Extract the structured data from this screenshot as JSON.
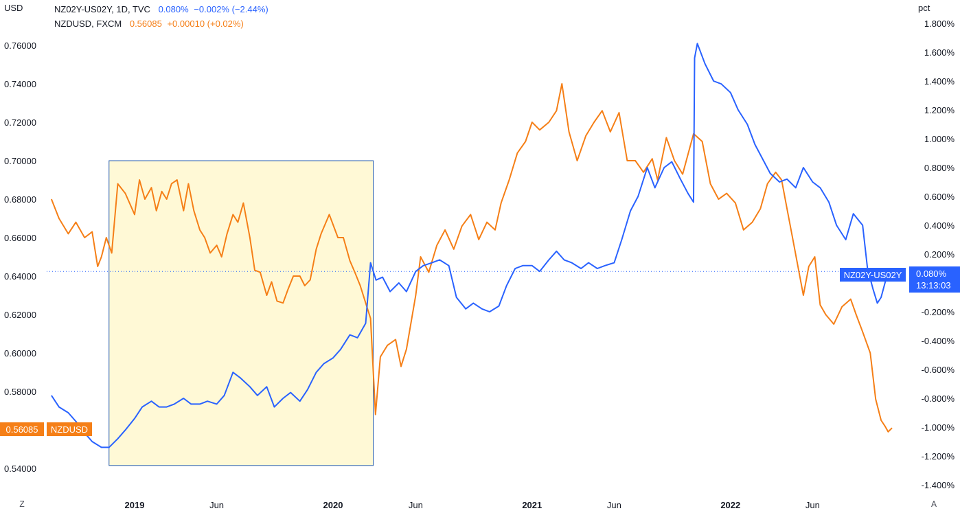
{
  "units": {
    "left": "USD",
    "right": "pct"
  },
  "legend": {
    "spread": {
      "symbol": "NZ02Y-US02Y, 1D, TVC",
      "value": "0.080%",
      "change": "−0.002% (−2.44%)"
    },
    "nzdusd": {
      "symbol": "NZDUSD, FXCM",
      "value": "0.56085",
      "change": "+0.00010 (+0.02%)"
    }
  },
  "badges": {
    "nzdusd_price": "0.56085",
    "nzdusd_name": "NZDUSD",
    "spread_name": "NZ02Y-US02Y",
    "spread_value": "0.080%",
    "countdown": "13:13:03"
  },
  "controls": {
    "left_corner": "Z",
    "right_corner": "A"
  },
  "colors": {
    "nzdusd": "#f57f17",
    "spread": "#2962ff",
    "highlight_fill": "#fff9d6",
    "highlight_border": "#2a5fb0"
  },
  "chart_data": {
    "type": "line",
    "x_tick_labels": [
      "2019",
      "Jun",
      "2020",
      "Jun",
      "2021",
      "Jun",
      "2022",
      "Jun"
    ],
    "x_tick_dates": [
      "2019-01-01",
      "2019-06-01",
      "2020-01-01",
      "2020-06-01",
      "2021-01-01",
      "2021-06-01",
      "2022-01-01",
      "2022-06-01"
    ],
    "left_axis": {
      "label": "USD",
      "range": [
        0.54,
        0.76
      ],
      "ticks": [
        "0.54000",
        "0.56000",
        "0.58000",
        "0.60000",
        "0.62000",
        "0.64000",
        "0.66000",
        "0.68000",
        "0.70000",
        "0.72000",
        "0.74000",
        "0.76000"
      ]
    },
    "right_axis": {
      "label": "pct",
      "range": [
        -1.4,
        1.8
      ],
      "ticks": [
        "-1.400%",
        "-1.200%",
        "-1.000%",
        "-0.800%",
        "-0.600%",
        "-0.400%",
        "-0.200%",
        "0.200%",
        "0.400%",
        "0.600%",
        "0.800%",
        "1.000%",
        "1.200%",
        "1.400%",
        "1.600%",
        "1.800%"
      ]
    },
    "highlight": {
      "from": "2018-11-15",
      "to": "2020-03-15",
      "y_top": 0.7,
      "y_bottom": 0.5415
    },
    "reference_line": {
      "value": 0.08,
      "axis": "right"
    },
    "series": [
      {
        "name": "NZDUSD",
        "axis": "left",
        "points": [
          [
            "2018-08-01",
            0.68
          ],
          [
            "2018-08-15",
            0.67
          ],
          [
            "2018-09-01",
            0.662
          ],
          [
            "2018-09-15",
            0.668
          ],
          [
            "2018-10-01",
            0.66
          ],
          [
            "2018-10-15",
            0.663
          ],
          [
            "2018-10-25",
            0.645
          ],
          [
            "2018-11-01",
            0.65
          ],
          [
            "2018-11-10",
            0.66
          ],
          [
            "2018-11-20",
            0.652
          ],
          [
            "2018-12-01",
            0.688
          ],
          [
            "2018-12-15",
            0.683
          ],
          [
            "2019-01-01",
            0.672
          ],
          [
            "2019-01-10",
            0.69
          ],
          [
            "2019-01-20",
            0.68
          ],
          [
            "2019-02-01",
            0.686
          ],
          [
            "2019-02-10",
            0.674
          ],
          [
            "2019-02-20",
            0.684
          ],
          [
            "2019-03-01",
            0.68
          ],
          [
            "2019-03-10",
            0.688
          ],
          [
            "2019-03-20",
            0.69
          ],
          [
            "2019-04-01",
            0.674
          ],
          [
            "2019-04-10",
            0.688
          ],
          [
            "2019-04-20",
            0.674
          ],
          [
            "2019-05-01",
            0.664
          ],
          [
            "2019-05-10",
            0.66
          ],
          [
            "2019-05-20",
            0.652
          ],
          [
            "2019-06-01",
            0.656
          ],
          [
            "2019-06-10",
            0.65
          ],
          [
            "2019-06-20",
            0.662
          ],
          [
            "2019-07-01",
            0.672
          ],
          [
            "2019-07-10",
            0.668
          ],
          [
            "2019-07-20",
            0.678
          ],
          [
            "2019-08-01",
            0.66
          ],
          [
            "2019-08-10",
            0.643
          ],
          [
            "2019-08-20",
            0.642
          ],
          [
            "2019-09-01",
            0.63
          ],
          [
            "2019-09-10",
            0.637
          ],
          [
            "2019-09-20",
            0.627
          ],
          [
            "2019-10-01",
            0.626
          ],
          [
            "2019-10-10",
            0.633
          ],
          [
            "2019-10-20",
            0.64
          ],
          [
            "2019-11-01",
            0.64
          ],
          [
            "2019-11-10",
            0.635
          ],
          [
            "2019-11-20",
            0.638
          ],
          [
            "2019-12-01",
            0.654
          ],
          [
            "2019-12-10",
            0.662
          ],
          [
            "2019-12-25",
            0.672
          ],
          [
            "2020-01-10",
            0.66
          ],
          [
            "2020-01-20",
            0.66
          ],
          [
            "2020-02-01",
            0.648
          ],
          [
            "2020-02-10",
            0.642
          ],
          [
            "2020-02-20",
            0.635
          ],
          [
            "2020-03-01",
            0.626
          ],
          [
            "2020-03-10",
            0.618
          ],
          [
            "2020-03-19",
            0.568
          ],
          [
            "2020-03-28",
            0.598
          ],
          [
            "2020-04-10",
            0.604
          ],
          [
            "2020-04-25",
            0.607
          ],
          [
            "2020-05-05",
            0.593
          ],
          [
            "2020-05-15",
            0.602
          ],
          [
            "2020-06-01",
            0.63
          ],
          [
            "2020-06-10",
            0.65
          ],
          [
            "2020-06-25",
            0.642
          ],
          [
            "2020-07-10",
            0.656
          ],
          [
            "2020-07-25",
            0.664
          ],
          [
            "2020-08-10",
            0.654
          ],
          [
            "2020-08-25",
            0.666
          ],
          [
            "2020-09-10",
            0.672
          ],
          [
            "2020-09-25",
            0.659
          ],
          [
            "2020-10-10",
            0.668
          ],
          [
            "2020-10-25",
            0.664
          ],
          [
            "2020-11-05",
            0.678
          ],
          [
            "2020-11-20",
            0.69
          ],
          [
            "2020-12-05",
            0.704
          ],
          [
            "2020-12-20",
            0.71
          ],
          [
            "2021-01-01",
            0.72
          ],
          [
            "2021-01-15",
            0.716
          ],
          [
            "2021-02-01",
            0.72
          ],
          [
            "2021-02-15",
            0.726
          ],
          [
            "2021-02-25",
            0.74
          ],
          [
            "2021-03-10",
            0.715
          ],
          [
            "2021-03-25",
            0.7
          ],
          [
            "2021-04-10",
            0.713
          ],
          [
            "2021-04-25",
            0.72
          ],
          [
            "2021-05-10",
            0.726
          ],
          [
            "2021-05-25",
            0.715
          ],
          [
            "2021-06-10",
            0.725
          ],
          [
            "2021-06-25",
            0.7
          ],
          [
            "2021-07-10",
            0.7
          ],
          [
            "2021-07-25",
            0.694
          ],
          [
            "2021-08-10",
            0.701
          ],
          [
            "2021-08-20",
            0.69
          ],
          [
            "2021-09-05",
            0.712
          ],
          [
            "2021-09-20",
            0.7
          ],
          [
            "2021-10-05",
            0.693
          ],
          [
            "2021-10-25",
            0.714
          ],
          [
            "2021-11-10",
            0.71
          ],
          [
            "2021-11-25",
            0.688
          ],
          [
            "2021-12-10",
            0.68
          ],
          [
            "2021-12-25",
            0.683
          ],
          [
            "2022-01-10",
            0.678
          ],
          [
            "2022-01-25",
            0.664
          ],
          [
            "2022-02-10",
            0.668
          ],
          [
            "2022-02-25",
            0.675
          ],
          [
            "2022-03-10",
            0.688
          ],
          [
            "2022-03-25",
            0.694
          ],
          [
            "2022-04-05",
            0.69
          ],
          [
            "2022-04-15",
            0.675
          ],
          [
            "2022-04-25",
            0.66
          ],
          [
            "2022-05-05",
            0.645
          ],
          [
            "2022-05-15",
            0.63
          ],
          [
            "2022-05-25",
            0.645
          ],
          [
            "2022-06-05",
            0.65
          ],
          [
            "2022-06-15",
            0.625
          ],
          [
            "2022-06-25",
            0.62
          ],
          [
            "2022-07-10",
            0.615
          ],
          [
            "2022-07-25",
            0.624
          ],
          [
            "2022-08-10",
            0.628
          ],
          [
            "2022-08-20",
            0.62
          ],
          [
            "2022-09-01",
            0.611
          ],
          [
            "2022-09-15",
            0.6
          ],
          [
            "2022-09-25",
            0.576
          ],
          [
            "2022-10-05",
            0.565
          ],
          [
            "2022-10-12",
            0.562
          ],
          [
            "2022-10-18",
            0.559
          ],
          [
            "2022-10-25",
            0.561
          ]
        ]
      },
      {
        "name": "NZ02Y-US02Y",
        "axis": "right",
        "points": [
          [
            "2018-08-01",
            -0.78
          ],
          [
            "2018-08-15",
            -0.86
          ],
          [
            "2018-09-01",
            -0.9
          ],
          [
            "2018-09-15",
            -0.96
          ],
          [
            "2018-10-01",
            -1.04
          ],
          [
            "2018-10-15",
            -1.1
          ],
          [
            "2018-11-01",
            -1.14
          ],
          [
            "2018-11-15",
            -1.14
          ],
          [
            "2018-12-01",
            -1.08
          ],
          [
            "2018-12-15",
            -1.02
          ],
          [
            "2019-01-01",
            -0.94
          ],
          [
            "2019-01-15",
            -0.86
          ],
          [
            "2019-02-01",
            -0.82
          ],
          [
            "2019-02-15",
            -0.86
          ],
          [
            "2019-03-01",
            -0.86
          ],
          [
            "2019-03-15",
            -0.84
          ],
          [
            "2019-04-01",
            -0.8
          ],
          [
            "2019-04-15",
            -0.84
          ],
          [
            "2019-05-01",
            -0.84
          ],
          [
            "2019-05-15",
            -0.82
          ],
          [
            "2019-06-01",
            -0.84
          ],
          [
            "2019-06-15",
            -0.78
          ],
          [
            "2019-07-01",
            -0.62
          ],
          [
            "2019-07-15",
            -0.66
          ],
          [
            "2019-08-01",
            -0.72
          ],
          [
            "2019-08-15",
            -0.78
          ],
          [
            "2019-09-01",
            -0.72
          ],
          [
            "2019-09-15",
            -0.86
          ],
          [
            "2019-10-01",
            -0.8
          ],
          [
            "2019-10-15",
            -0.76
          ],
          [
            "2019-11-01",
            -0.82
          ],
          [
            "2019-11-15",
            -0.74
          ],
          [
            "2019-12-01",
            -0.62
          ],
          [
            "2019-12-15",
            -0.56
          ],
          [
            "2020-01-01",
            -0.52
          ],
          [
            "2020-01-15",
            -0.46
          ],
          [
            "2020-02-01",
            -0.36
          ],
          [
            "2020-02-15",
            -0.38
          ],
          [
            "2020-03-01",
            -0.28
          ],
          [
            "2020-03-10",
            0.14
          ],
          [
            "2020-03-20",
            0.02
          ],
          [
            "2020-04-01",
            0.04
          ],
          [
            "2020-04-15",
            -0.06
          ],
          [
            "2020-05-01",
            0.0
          ],
          [
            "2020-05-15",
            -0.06
          ],
          [
            "2020-06-01",
            0.08
          ],
          [
            "2020-06-15",
            0.12
          ],
          [
            "2020-07-01",
            0.14
          ],
          [
            "2020-07-15",
            0.16
          ],
          [
            "2020-08-01",
            0.12
          ],
          [
            "2020-08-15",
            -0.1
          ],
          [
            "2020-09-01",
            -0.18
          ],
          [
            "2020-09-15",
            -0.14
          ],
          [
            "2020-10-01",
            -0.18
          ],
          [
            "2020-10-15",
            -0.2
          ],
          [
            "2020-11-01",
            -0.16
          ],
          [
            "2020-11-15",
            -0.02
          ],
          [
            "2020-12-01",
            0.1
          ],
          [
            "2020-12-15",
            0.12
          ],
          [
            "2021-01-01",
            0.12
          ],
          [
            "2021-01-15",
            0.08
          ],
          [
            "2021-02-01",
            0.16
          ],
          [
            "2021-02-15",
            0.22
          ],
          [
            "2021-03-01",
            0.16
          ],
          [
            "2021-03-15",
            0.14
          ],
          [
            "2021-04-01",
            0.1
          ],
          [
            "2021-04-15",
            0.14
          ],
          [
            "2021-05-01",
            0.1
          ],
          [
            "2021-05-15",
            0.12
          ],
          [
            "2021-06-01",
            0.14
          ],
          [
            "2021-06-15",
            0.3
          ],
          [
            "2021-07-01",
            0.5
          ],
          [
            "2021-07-15",
            0.6
          ],
          [
            "2021-08-01",
            0.8
          ],
          [
            "2021-08-15",
            0.66
          ],
          [
            "2021-09-01",
            0.8
          ],
          [
            "2021-09-15",
            0.84
          ],
          [
            "2021-10-01",
            0.72
          ],
          [
            "2021-10-15",
            0.62
          ],
          [
            "2021-10-25",
            0.56
          ],
          [
            "2021-10-27",
            1.56
          ],
          [
            "2021-11-01",
            1.66
          ],
          [
            "2021-11-15",
            1.52
          ],
          [
            "2021-12-01",
            1.4
          ],
          [
            "2021-12-15",
            1.38
          ],
          [
            "2022-01-01",
            1.32
          ],
          [
            "2022-01-15",
            1.2
          ],
          [
            "2022-02-01",
            1.1
          ],
          [
            "2022-02-15",
            0.96
          ],
          [
            "2022-03-01",
            0.86
          ],
          [
            "2022-03-15",
            0.76
          ],
          [
            "2022-04-01",
            0.7
          ],
          [
            "2022-04-15",
            0.72
          ],
          [
            "2022-05-01",
            0.66
          ],
          [
            "2022-05-15",
            0.8
          ],
          [
            "2022-06-01",
            0.7
          ],
          [
            "2022-06-15",
            0.66
          ],
          [
            "2022-07-01",
            0.56
          ],
          [
            "2022-07-15",
            0.4
          ],
          [
            "2022-08-01",
            0.3
          ],
          [
            "2022-08-15",
            0.48
          ],
          [
            "2022-09-01",
            0.4
          ],
          [
            "2022-09-10",
            0.1
          ],
          [
            "2022-09-20",
            -0.04
          ],
          [
            "2022-09-28",
            -0.14
          ],
          [
            "2022-10-05",
            -0.1
          ],
          [
            "2022-10-15",
            0.04
          ],
          [
            "2022-10-25",
            0.08
          ]
        ]
      }
    ]
  }
}
